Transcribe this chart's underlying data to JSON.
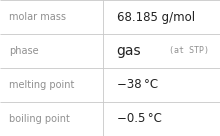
{
  "rows": [
    {
      "label": "molar mass",
      "value": "68.185 g/mol",
      "value_type": "normal"
    },
    {
      "label": "phase",
      "value": "gas",
      "value_suffix": "(at STP)",
      "value_type": "phase"
    },
    {
      "label": "melting point",
      "value": "−38 °C",
      "value_type": "normal"
    },
    {
      "label": "boiling point",
      "value": "−0.5 °C",
      "value_type": "normal"
    }
  ],
  "bg_color": "#ffffff",
  "border_color": "#c8c8c8",
  "label_color": "#909090",
  "value_color": "#222222",
  "phase_main_color": "#222222",
  "suffix_color": "#909090",
  "col_split": 0.47,
  "label_fontsize": 7.0,
  "value_fontsize": 8.5,
  "phase_main_fontsize": 10.0,
  "suffix_fontsize": 6.0
}
